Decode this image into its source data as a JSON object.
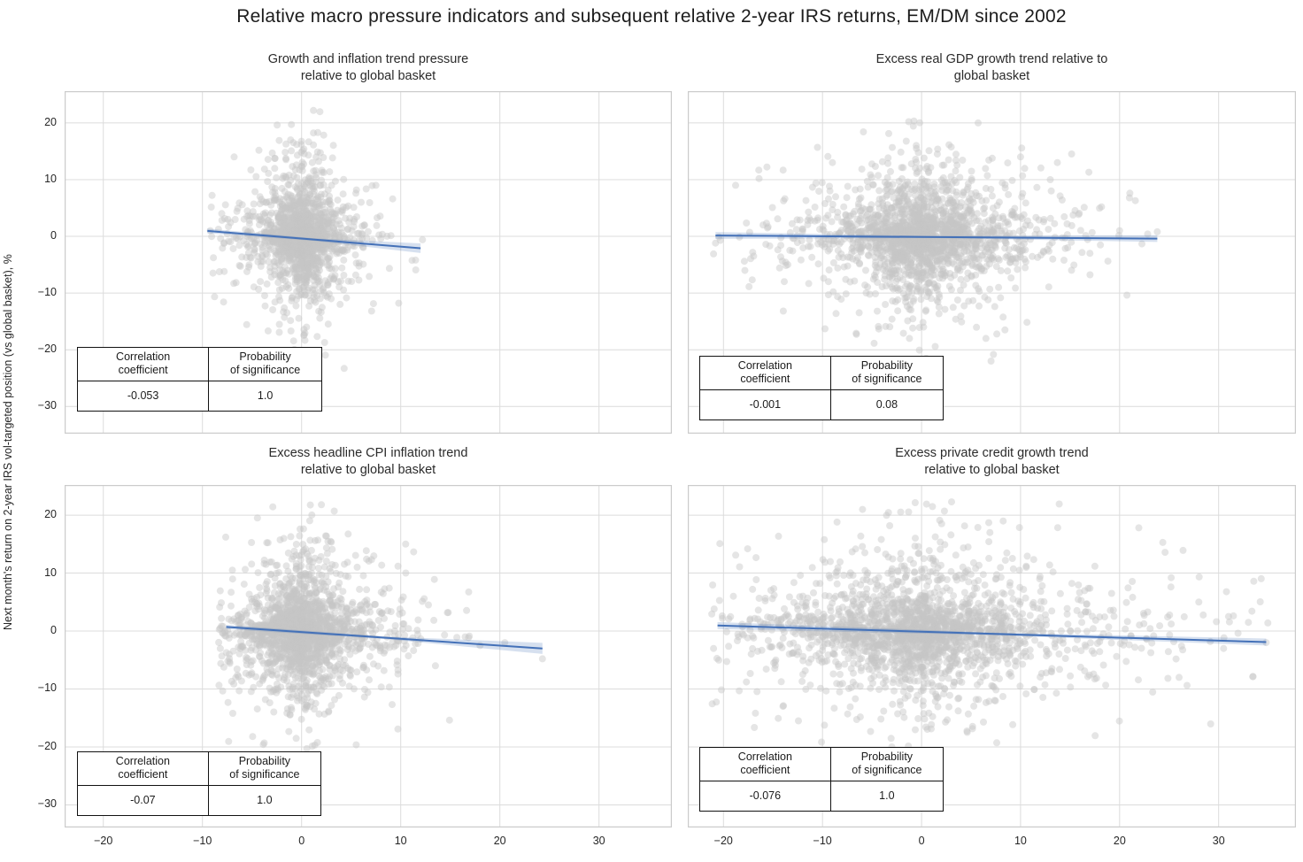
{
  "title": "Relative macro pressure indicators and subsequent relative 2-year IRS returns, EM/DM since 2002",
  "y_axis_label": "Next month's return on 2-year IRS vol-targeted position (vs global basket), %",
  "table_labels": {
    "corr_line1": "Correlation",
    "corr_line2": "coefficient",
    "prob_line1": "Probability",
    "prob_line2": "of significance"
  },
  "colors": {
    "point": "#c6c6c6",
    "regression_line": "#4471b8",
    "confidence_band": "#4471b8",
    "grid": "#dcdcdc",
    "panel_border": "#cbcbcb",
    "text": "#262626"
  },
  "chart_data": {
    "type": "scatter",
    "title": "Relative macro pressure indicators and subsequent relative 2-year IRS returns, EM/DM since 2002",
    "ylabel": "Next month's return on 2-year IRS vol-targeted position (vs global basket), %",
    "x_ticks": [
      -20,
      -10,
      0,
      10,
      20,
      30
    ],
    "y_ticks": [
      20,
      10,
      0,
      -10,
      -20,
      -30
    ],
    "grid": true,
    "panels": [
      {
        "title_line1": "Growth and inflation trend pressure",
        "title_line2": "relative to global basket",
        "corr": "-0.053",
        "prob": "1.0",
        "xlim": [
          -23.9,
          37.35
        ],
        "ylim": [
          -34.8,
          25.6
        ],
        "regression": {
          "x1": -9.5,
          "y1": 0.95,
          "x2": 12.0,
          "y2": -2.1,
          "band_w1": 0.4,
          "band_wm": 0.22,
          "band_w2": 0.85
        },
        "cloud": {
          "n": 1500,
          "bx": 2.1,
          "by": 4.3,
          "x_min": -9.3,
          "x_max": 12.3,
          "y_min": -24.5,
          "y_max": 22.3,
          "seed": 7,
          "outliers": [
            [
              12.2,
              -0.6
            ],
            [
              -9.2,
              1.0
            ],
            [
              9.8,
              -11.8
            ],
            [
              4.3,
              -23.3
            ],
            [
              1.2,
              22.2
            ],
            [
              -6.8,
              14.0
            ],
            [
              7.5,
              9.0
            ],
            [
              11.5,
              -4.2
            ]
          ]
        }
      },
      {
        "title_line1": "Excess real GDP growth trend relative to",
        "title_line2": "global basket",
        "corr": "-0.001",
        "prob": "0.08",
        "xlim": [
          -23.6,
          37.8
        ],
        "ylim": [
          -34.8,
          25.6
        ],
        "regression": {
          "x1": -20.8,
          "y1": 0.15,
          "x2": 23.8,
          "y2": -0.4,
          "band_w1": 0.6,
          "band_wm": 0.18,
          "band_w2": 0.6
        },
        "cloud": {
          "n": 1900,
          "bx": 4.2,
          "by": 4.3,
          "x_min": -21.2,
          "x_max": 24.0,
          "y_min": -24.5,
          "y_max": 22.3,
          "seed": 13,
          "outliers": [
            [
              -20.8,
              -1.2
            ],
            [
              23.8,
              0.8
            ],
            [
              20.0,
              1.0
            ],
            [
              17.0,
              -3.0
            ],
            [
              -16.0,
              2.0
            ],
            [
              -13.5,
              -5.0
            ],
            [
              13.0,
              10.0
            ],
            [
              10.0,
              14.0
            ],
            [
              -9.0,
              13.0
            ],
            [
              6.5,
              -18.0
            ]
          ]
        }
      },
      {
        "title_line1": "Excess headline CPI inflation trend",
        "title_line2": "relative to global basket",
        "corr": "-0.07",
        "prob": "1.0",
        "xlim": [
          -23.9,
          37.35
        ],
        "ylim": [
          -33.9,
          25.2
        ],
        "regression": {
          "x1": -7.6,
          "y1": 0.7,
          "x2": 24.3,
          "y2": -3.0,
          "band_w1": 0.35,
          "band_wm": 0.22,
          "band_w2": 0.95
        },
        "cloud": {
          "n": 1800,
          "bx": 2.9,
          "by": 4.3,
          "x_min": -8.4,
          "x_max": 24.4,
          "y_min": -24.5,
          "y_max": 22.0,
          "seed": 23,
          "outliers": [
            [
              16.5,
              -1.0
            ],
            [
              18.0,
              -2.5
            ],
            [
              20.5,
              -2.0
            ],
            [
              24.3,
              -4.8
            ],
            [
              14.8,
              3.2
            ],
            [
              13.5,
              -6.0
            ],
            [
              12.8,
              4.5
            ],
            [
              -8.2,
              0.5
            ],
            [
              10.5,
              15.0
            ],
            [
              2.0,
              21.8
            ]
          ]
        }
      },
      {
        "title_line1": "Excess private credit growth trend",
        "title_line2": "relative to global basket",
        "corr": "-0.076",
        "prob": "1.0",
        "xlim": [
          -23.6,
          37.8
        ],
        "ylim": [
          -33.9,
          25.2
        ],
        "regression": {
          "x1": -20.6,
          "y1": 0.95,
          "x2": 34.8,
          "y2": -1.9,
          "band_w1": 0.6,
          "band_wm": 0.22,
          "band_w2": 0.6
        },
        "cloud": {
          "n": 2100,
          "bx": 7.2,
          "by": 4.3,
          "x_min": -21.3,
          "x_max": 35.0,
          "y_min": -20.5,
          "y_max": 22.3,
          "seed": 42,
          "outliers": [
            [
              34.8,
              -2.0
            ],
            [
              33.0,
              1.5
            ],
            [
              30.5,
              -3.0
            ],
            [
              -21.0,
              -3.0
            ],
            [
              28.0,
              5.0
            ],
            [
              26.0,
              -8.0
            ],
            [
              31.0,
              2.5
            ],
            [
              -19.0,
              6.0
            ],
            [
              0.5,
              21.9
            ],
            [
              -3.0,
              -20.0
            ]
          ]
        }
      }
    ]
  }
}
